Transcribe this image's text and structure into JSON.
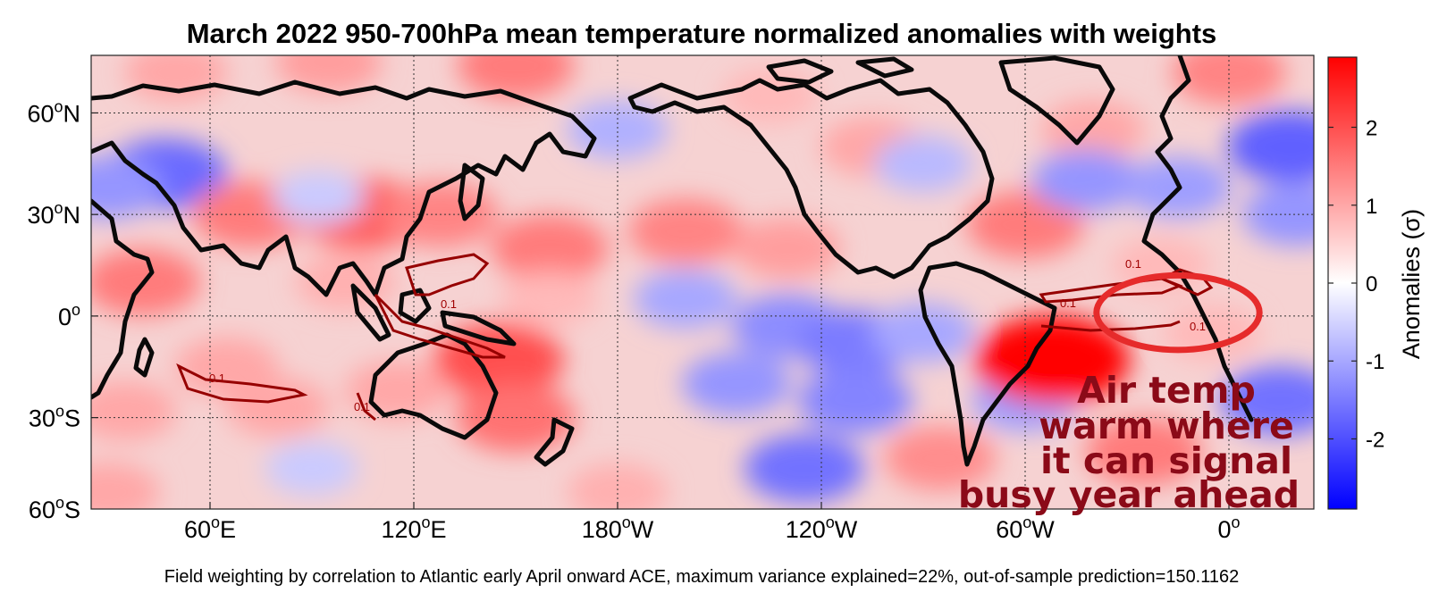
{
  "chart_data": {
    "type": "heatmap",
    "title": "March 2022 950-700hPa mean temperature normalized anomalies with weights",
    "footnote": "Field weighting by correlation to Atlantic early April onward ACE, maximum variance explained=22%, out-of-sample prediction=150.1162",
    "x_ticks": [
      {
        "lon": 60,
        "deg": "60",
        "hemi": "E"
      },
      {
        "lon": 120,
        "deg": "120",
        "hemi": "E"
      },
      {
        "lon": 180,
        "deg": "180",
        "hemi": "W"
      },
      {
        "lon": 240,
        "deg": "120",
        "hemi": "W"
      },
      {
        "lon": 300,
        "deg": "60",
        "hemi": "W"
      },
      {
        "lon": 360,
        "deg": "0",
        "hemi": ""
      }
    ],
    "y_ticks": [
      {
        "lat": 60,
        "deg": "60",
        "hemi": "N"
      },
      {
        "lat": 30,
        "deg": "30",
        "hemi": "N"
      },
      {
        "lat": 0,
        "deg": "0",
        "hemi": ""
      },
      {
        "lat": -30,
        "deg": "30",
        "hemi": "S"
      },
      {
        "lat": -60,
        "deg": "60",
        "hemi": "S"
      }
    ],
    "lon_range": [
      25,
      385
    ],
    "lat_range": [
      -57,
      77
    ],
    "colorbar": {
      "label": "Anomalies (σ)",
      "range": [
        -2.9,
        2.9
      ],
      "ticks": [
        -2,
        -1,
        0,
        1,
        2
      ],
      "colors": {
        "neg": "#0000ff",
        "zero": "#ffffff",
        "pos": "#ff0000"
      }
    },
    "contour_level_label": "0.1",
    "anomaly_centers": [
      {
        "lon": 47,
        "lat": 42,
        "value": -1.7
      },
      {
        "lon": 30,
        "lat": 38,
        "value": -1.2
      },
      {
        "lon": 72,
        "lat": 30,
        "value": 1.5
      },
      {
        "lon": 105,
        "lat": 30,
        "value": 1.8
      },
      {
        "lon": 92,
        "lat": 35,
        "value": -0.6
      },
      {
        "lon": 128,
        "lat": 30,
        "value": 1.4
      },
      {
        "lon": 160,
        "lat": 20,
        "value": 1.5
      },
      {
        "lon": 200,
        "lat": 25,
        "value": 1.4
      },
      {
        "lon": 230,
        "lat": 20,
        "value": 1.1
      },
      {
        "lon": 300,
        "lat": 27,
        "value": 1.5
      },
      {
        "lon": 340,
        "lat": 15,
        "value": 0.8
      },
      {
        "lon": 150,
        "lat": 74,
        "value": 1.5
      },
      {
        "lon": 95,
        "lat": 75,
        "value": 1.1
      },
      {
        "lon": 50,
        "lat": 72,
        "value": 1.0
      },
      {
        "lon": 360,
        "lat": 72,
        "value": 1.4
      },
      {
        "lon": 320,
        "lat": 55,
        "value": 1.0
      },
      {
        "lon": 225,
        "lat": 65,
        "value": 0.8
      },
      {
        "lon": 255,
        "lat": 50,
        "value": 1.0
      },
      {
        "lon": 40,
        "lat": 10,
        "value": 1.5
      },
      {
        "lon": 180,
        "lat": 55,
        "value": -0.9
      },
      {
        "lon": 270,
        "lat": 45,
        "value": -0.8
      },
      {
        "lon": 318,
        "lat": 40,
        "value": -1.2
      },
      {
        "lon": 345,
        "lat": 38,
        "value": -1.1
      },
      {
        "lon": 378,
        "lat": 50,
        "value": -1.8
      },
      {
        "lon": 380,
        "lat": 30,
        "value": -1.2
      },
      {
        "lon": 200,
        "lat": 5,
        "value": -1.0
      },
      {
        "lon": 230,
        "lat": -3,
        "value": -1.3
      },
      {
        "lon": 250,
        "lat": -8,
        "value": -1.5
      },
      {
        "lon": 270,
        "lat": -5,
        "value": -1.0
      },
      {
        "lon": 215,
        "lat": -20,
        "value": -1.2
      },
      {
        "lon": 250,
        "lat": -25,
        "value": -1.4
      },
      {
        "lon": 300,
        "lat": -25,
        "value": -1.1
      },
      {
        "lon": 308,
        "lat": -13,
        "value": 2.9
      },
      {
        "lon": 145,
        "lat": -13,
        "value": 2.0
      },
      {
        "lon": 150,
        "lat": -30,
        "value": 1.6
      },
      {
        "lon": 115,
        "lat": -22,
        "value": 1.0
      },
      {
        "lon": 65,
        "lat": -15,
        "value": 1.0
      },
      {
        "lon": 80,
        "lat": -27,
        "value": 1.0
      },
      {
        "lon": 35,
        "lat": -28,
        "value": 1.0
      },
      {
        "lon": 90,
        "lat": -45,
        "value": -0.6
      },
      {
        "lon": 235,
        "lat": -45,
        "value": -1.6
      },
      {
        "lon": 275,
        "lat": -42,
        "value": 1.3
      },
      {
        "lon": 335,
        "lat": -40,
        "value": 1.5
      },
      {
        "lon": 375,
        "lat": -25,
        "value": -1.6
      },
      {
        "lon": 30,
        "lat": -52,
        "value": 1.0
      },
      {
        "lon": 180,
        "lat": -52,
        "value": 0.9
      },
      {
        "lon": 355,
        "lat": -5,
        "value": 0.8
      },
      {
        "lon": 100,
        "lat": 10,
        "value": 0.9
      },
      {
        "lon": 160,
        "lat": 5,
        "value": 0.8
      }
    ]
  },
  "annotation": {
    "lines": [
      "Air temp",
      "warm where",
      "it can signal",
      "busy year ahead"
    ],
    "ellipse": {
      "lon_center": 345,
      "lat_center": 1,
      "lon_halfwidth": 24,
      "lat_halfheight": 11,
      "color": "#e62b2b"
    }
  }
}
